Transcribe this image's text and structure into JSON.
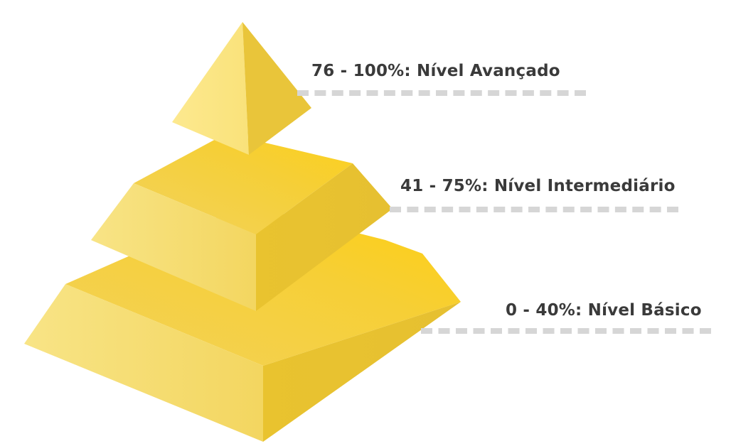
{
  "levels": [
    {
      "id": "advanced",
      "label": "76 - 100%: Nível Avançado"
    },
    {
      "id": "intermediate",
      "label": "41 - 75%: Nível Intermediário"
    },
    {
      "id": "basic",
      "label": "0 - 40%: Nível Básico"
    }
  ],
  "colors": {
    "face_light": "#f7df74",
    "face_mid": "#f0cf45",
    "face_dark": "#e8c22e",
    "face_bright": "#fcd226",
    "dash": "#d6d6d6",
    "label_text": "#3a3a3a"
  }
}
